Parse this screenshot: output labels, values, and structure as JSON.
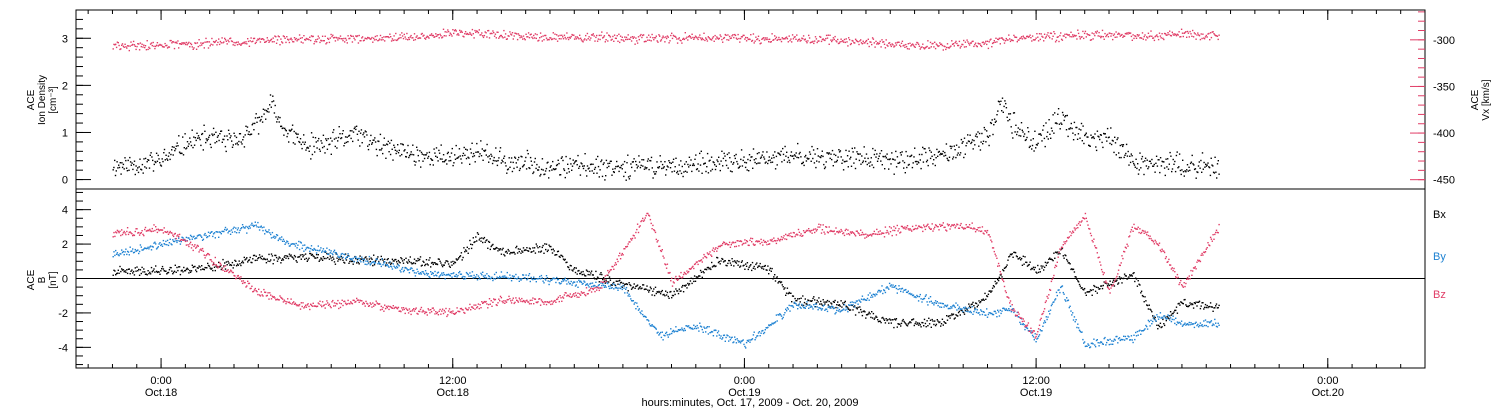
{
  "chart_data": [
    {
      "type": "scatter",
      "panel": "top",
      "left_axis": {
        "label_lines": [
          "ACE",
          "Ion Density",
          "[cm⁻³]"
        ],
        "ylim": [
          -0.2,
          3.6
        ],
        "ticks": [
          "0",
          "1",
          "2",
          "3"
        ],
        "tick_values": [
          0,
          1,
          2,
          3
        ]
      },
      "right_axis": {
        "label_lines": [
          "ACE",
          "Vx [km/s]"
        ],
        "ylim": [
          -460,
          -268
        ],
        "ticks": [
          "-300",
          "-350",
          "-400",
          "-450"
        ],
        "tick_values": [
          -300,
          -350,
          -400,
          -450
        ]
      },
      "series": [
        {
          "axis": "left",
          "color": "#000000",
          "points": [
            [
              "2009-10-17T22:00",
              0.3
            ],
            [
              "2009-10-18T00:00",
              0.4
            ],
            [
              "2009-10-18T01:00",
              0.8
            ],
            [
              "2009-10-18T02:00",
              0.9
            ],
            [
              "2009-10-18T03:00",
              0.8
            ],
            [
              "2009-10-18T04:00",
              1.2
            ],
            [
              "2009-10-18T04:30",
              1.6
            ],
            [
              "2009-10-18T05:00",
              1.1
            ],
            [
              "2009-10-18T06:00",
              0.7
            ],
            [
              "2009-10-18T07:00",
              0.8
            ],
            [
              "2009-10-18T08:00",
              1.0
            ],
            [
              "2009-10-18T09:00",
              0.7
            ],
            [
              "2009-10-18T10:00",
              0.6
            ],
            [
              "2009-10-18T11:00",
              0.5
            ],
            [
              "2009-10-18T12:00",
              0.5
            ],
            [
              "2009-10-18T13:00",
              0.6
            ],
            [
              "2009-10-18T14:00",
              0.4
            ],
            [
              "2009-10-18T16:00",
              0.3
            ],
            [
              "2009-10-18T18:00",
              0.3
            ],
            [
              "2009-10-18T20:00",
              0.3
            ],
            [
              "2009-10-18T22:00",
              0.3
            ],
            [
              "2009-10-19T00:00",
              0.4
            ],
            [
              "2009-10-19T02:00",
              0.5
            ],
            [
              "2009-10-19T04:00",
              0.5
            ],
            [
              "2009-10-19T06:00",
              0.4
            ],
            [
              "2009-10-19T08:00",
              0.5
            ],
            [
              "2009-10-19T10:00",
              0.9
            ],
            [
              "2009-10-19T10:30",
              1.7
            ],
            [
              "2009-10-19T11:00",
              1.2
            ],
            [
              "2009-10-19T12:00",
              0.8
            ],
            [
              "2009-10-19T13:00",
              1.3
            ],
            [
              "2009-10-19T14:00",
              0.9
            ],
            [
              "2009-10-19T15:00",
              0.9
            ],
            [
              "2009-10-19T16:00",
              0.4
            ],
            [
              "2009-10-19T18:00",
              0.3
            ],
            [
              "2009-10-19T19:30",
              0.3
            ]
          ]
        },
        {
          "axis": "right",
          "color": "#e03c66",
          "points": [
            [
              "2009-10-17T22:00",
              -306
            ],
            [
              "2009-10-18T00:00",
              -305
            ],
            [
              "2009-10-18T02:00",
              -303
            ],
            [
              "2009-10-18T04:00",
              -300
            ],
            [
              "2009-10-18T06:00",
              -299
            ],
            [
              "2009-10-18T08:00",
              -298
            ],
            [
              "2009-10-18T10:00",
              -297
            ],
            [
              "2009-10-18T12:00",
              -293
            ],
            [
              "2009-10-18T13:00",
              -291
            ],
            [
              "2009-10-18T14:00",
              -294
            ],
            [
              "2009-10-18T16:00",
              -296
            ],
            [
              "2009-10-18T18:00",
              -297
            ],
            [
              "2009-10-18T20:00",
              -298
            ],
            [
              "2009-10-18T22:00",
              -297
            ],
            [
              "2009-10-19T00:00",
              -298
            ],
            [
              "2009-10-19T02:00",
              -298
            ],
            [
              "2009-10-19T04:00",
              -300
            ],
            [
              "2009-10-19T06:00",
              -304
            ],
            [
              "2009-10-19T08:00",
              -306
            ],
            [
              "2009-10-19T10:00",
              -303
            ],
            [
              "2009-10-19T11:00",
              -298
            ],
            [
              "2009-10-19T12:00",
              -297
            ],
            [
              "2009-10-19T14:00",
              -294
            ],
            [
              "2009-10-19T16:00",
              -295
            ],
            [
              "2009-10-19T18:00",
              -293
            ],
            [
              "2009-10-19T19:30",
              -296
            ]
          ]
        }
      ]
    },
    {
      "type": "scatter",
      "panel": "bottom",
      "left_axis": {
        "label_lines": [
          "ACE",
          "B",
          "[nT]"
        ],
        "ylim": [
          -5.2,
          5.2
        ],
        "ticks": [
          "4",
          "2",
          "0",
          "-2",
          "-4"
        ],
        "tick_values": [
          4,
          2,
          0,
          -2,
          -4
        ]
      },
      "zero_line": true,
      "series": [
        {
          "name": "Bx",
          "color": "#000000",
          "points": [
            [
              "2009-10-17T22:00",
              0.4
            ],
            [
              "2009-10-18T00:00",
              0.5
            ],
            [
              "2009-10-18T02:00",
              0.7
            ],
            [
              "2009-10-18T04:00",
              1.2
            ],
            [
              "2009-10-18T06:00",
              1.3
            ],
            [
              "2009-10-18T08:00",
              1.1
            ],
            [
              "2009-10-18T10:00",
              1.0
            ],
            [
              "2009-10-18T12:00",
              0.9
            ],
            [
              "2009-10-18T13:00",
              2.4
            ],
            [
              "2009-10-18T14:00",
              1.6
            ],
            [
              "2009-10-18T16:00",
              1.8
            ],
            [
              "2009-10-18T17:00",
              0.5
            ],
            [
              "2009-10-18T19:00",
              -0.3
            ],
            [
              "2009-10-18T21:00",
              -0.9
            ],
            [
              "2009-10-18T23:00",
              1.1
            ],
            [
              "2009-10-19T01:00",
              0.5
            ],
            [
              "2009-10-19T02:00",
              -1.2
            ],
            [
              "2009-10-19T04:00",
              -1.5
            ],
            [
              "2009-10-19T06:00",
              -2.5
            ],
            [
              "2009-10-19T08:00",
              -2.6
            ],
            [
              "2009-10-19T10:00",
              -1.0
            ],
            [
              "2009-10-19T11:00",
              1.5
            ],
            [
              "2009-10-19T12:00",
              0.5
            ],
            [
              "2009-10-19T13:00",
              1.7
            ],
            [
              "2009-10-19T14:00",
              -0.8
            ],
            [
              "2009-10-19T15:00",
              -0.3
            ],
            [
              "2009-10-19T16:00",
              0.2
            ],
            [
              "2009-10-19T17:00",
              -2.8
            ],
            [
              "2009-10-19T18:00",
              -1.4
            ],
            [
              "2009-10-19T19:30",
              -1.6
            ]
          ]
        },
        {
          "name": "By",
          "color": "#1e82d2",
          "points": [
            [
              "2009-10-17T22:00",
              1.4
            ],
            [
              "2009-10-18T00:00",
              2.0
            ],
            [
              "2009-10-18T02:00",
              2.6
            ],
            [
              "2009-10-18T04:00",
              3.1
            ],
            [
              "2009-10-18T05:00",
              2.2
            ],
            [
              "2009-10-18T07:00",
              1.5
            ],
            [
              "2009-10-18T09:00",
              0.9
            ],
            [
              "2009-10-18T11:00",
              0.3
            ],
            [
              "2009-10-18T13:00",
              0.2
            ],
            [
              "2009-10-18T15:00",
              0.1
            ],
            [
              "2009-10-18T17:00",
              -0.2
            ],
            [
              "2009-10-18T19:00",
              -0.5
            ],
            [
              "2009-10-18T20:30",
              -3.3
            ],
            [
              "2009-10-18T22:00",
              -2.7
            ],
            [
              "2009-10-19T00:00",
              -3.8
            ],
            [
              "2009-10-19T02:00",
              -1.5
            ],
            [
              "2009-10-19T04:00",
              -1.8
            ],
            [
              "2009-10-19T06:00",
              -0.4
            ],
            [
              "2009-10-19T08:00",
              -1.5
            ],
            [
              "2009-10-19T10:00",
              -2.0
            ],
            [
              "2009-10-19T11:00",
              -1.8
            ],
            [
              "2009-10-19T12:00",
              -3.5
            ],
            [
              "2009-10-19T13:00",
              -0.4
            ],
            [
              "2009-10-19T14:00",
              -3.8
            ],
            [
              "2009-10-19T16:00",
              -3.4
            ],
            [
              "2009-10-19T17:00",
              -2.1
            ],
            [
              "2009-10-19T18:00",
              -2.6
            ],
            [
              "2009-10-19T19:30",
              -2.6
            ]
          ]
        },
        {
          "name": "Bz",
          "color": "#e03c66",
          "points": [
            [
              "2009-10-17T22:00",
              2.6
            ],
            [
              "2009-10-18T00:00",
              2.9
            ],
            [
              "2009-10-18T01:00",
              2.2
            ],
            [
              "2009-10-18T02:00",
              1.2
            ],
            [
              "2009-10-18T04:00",
              -0.8
            ],
            [
              "2009-10-18T06:00",
              -1.6
            ],
            [
              "2009-10-18T08:00",
              -1.3
            ],
            [
              "2009-10-18T10:00",
              -1.8
            ],
            [
              "2009-10-18T12:00",
              -1.9
            ],
            [
              "2009-10-18T14:00",
              -1.2
            ],
            [
              "2009-10-18T16:00",
              -1.3
            ],
            [
              "2009-10-18T18:00",
              -0.5
            ],
            [
              "2009-10-18T20:00",
              3.8
            ],
            [
              "2009-10-18T21:00",
              -0.2
            ],
            [
              "2009-10-18T23:00",
              2.0
            ],
            [
              "2009-10-19T01:00",
              2.2
            ],
            [
              "2009-10-19T03:00",
              2.9
            ],
            [
              "2009-10-19T05:00",
              2.6
            ],
            [
              "2009-10-19T07:00",
              3.0
            ],
            [
              "2009-10-19T09:00",
              3.1
            ],
            [
              "2009-10-19T10:00",
              2.8
            ],
            [
              "2009-10-19T11:00",
              -1.8
            ],
            [
              "2009-10-19T12:00",
              -3.3
            ],
            [
              "2009-10-19T13:00",
              1.9
            ],
            [
              "2009-10-19T14:00",
              3.6
            ],
            [
              "2009-10-19T15:00",
              -0.8
            ],
            [
              "2009-10-19T16:00",
              3.1
            ],
            [
              "2009-10-19T17:00",
              2.1
            ],
            [
              "2009-10-19T18:00",
              -0.5
            ],
            [
              "2009-10-19T19:30",
              3.0
            ]
          ]
        }
      ],
      "legend": [
        {
          "label": "Bx",
          "color": "#000000"
        },
        {
          "label": "By",
          "color": "#1e82d2"
        },
        {
          "label": "Bz",
          "color": "#e03c66"
        }
      ]
    }
  ],
  "x_axis": {
    "xlim": [
      "2009-10-17T20:30",
      "2009-10-20T04:00"
    ],
    "ticks": [
      {
        "at": "2009-10-18T00:00",
        "line1": "0:00",
        "line2": "Oct.18"
      },
      {
        "at": "2009-10-18T12:00",
        "line1": "12:00",
        "line2": "Oct.18"
      },
      {
        "at": "2009-10-19T00:00",
        "line1": "0:00",
        "line2": "Oct.19"
      },
      {
        "at": "2009-10-19T12:00",
        "line1": "12:00",
        "line2": "Oct.19"
      },
      {
        "at": "2009-10-20T00:00",
        "line1": "0:00",
        "line2": "Oct.20"
      }
    ],
    "xlabel": "hours:minutes, Oct. 17, 2009 - Oct. 20, 2009"
  }
}
